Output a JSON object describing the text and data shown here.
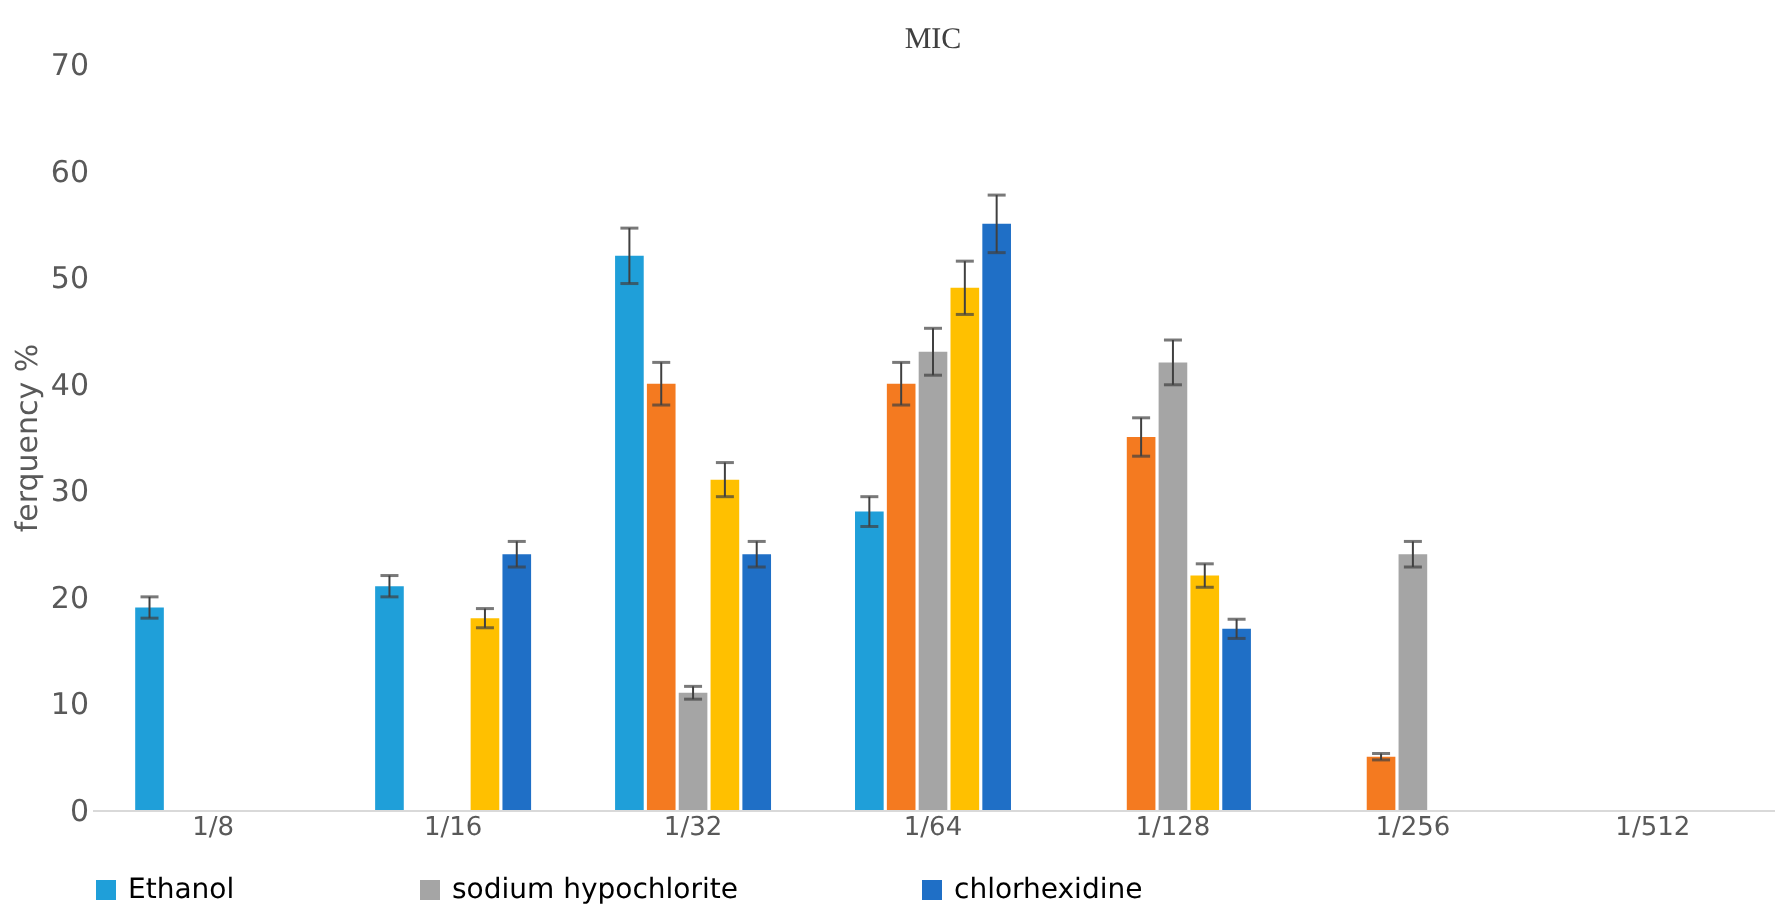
{
  "chart_data": {
    "type": "bar",
    "title": "MIC",
    "ylabel": "ferquency %",
    "categories": [
      "1/8",
      "1/16",
      "1/32",
      "1/64",
      "1/128",
      "1/256",
      "1/512"
    ],
    "series": [
      {
        "name": "Ethanol",
        "color": "#1f9fd9",
        "values": [
          19,
          21,
          52,
          28,
          0,
          0,
          0
        ],
        "errors": [
          1,
          1,
          2.6,
          1.4,
          null,
          null,
          null
        ]
      },
      {
        "color": "#f47a20",
        "values": [
          0,
          0,
          40,
          40,
          35,
          5,
          0
        ],
        "errors": [
          null,
          null,
          2,
          2,
          1.8,
          0.3,
          null
        ]
      },
      {
        "name": "sodium hypochlorite",
        "color": "#a5a5a5",
        "values": [
          0,
          0,
          11,
          43,
          42,
          24,
          0
        ],
        "errors": [
          null,
          null,
          0.6,
          2.2,
          2.1,
          1.2,
          null
        ]
      },
      {
        "color": "#ffc000",
        "values": [
          0,
          18,
          31,
          49,
          22,
          0,
          0
        ],
        "errors": [
          null,
          0.9,
          1.6,
          2.5,
          1.1,
          null,
          null
        ]
      },
      {
        "name": "chlorhexidine",
        "color": "#1f6fc6",
        "values": [
          0,
          24,
          24,
          55,
          17,
          0,
          0
        ],
        "errors": [
          null,
          1.2,
          1.2,
          2.7,
          0.9,
          null,
          null
        ]
      }
    ],
    "ylim": [
      0,
      70
    ],
    "yticks": [
      0,
      10,
      20,
      30,
      40,
      50,
      60,
      70
    ],
    "legend": "bottom",
    "grid": false
  }
}
